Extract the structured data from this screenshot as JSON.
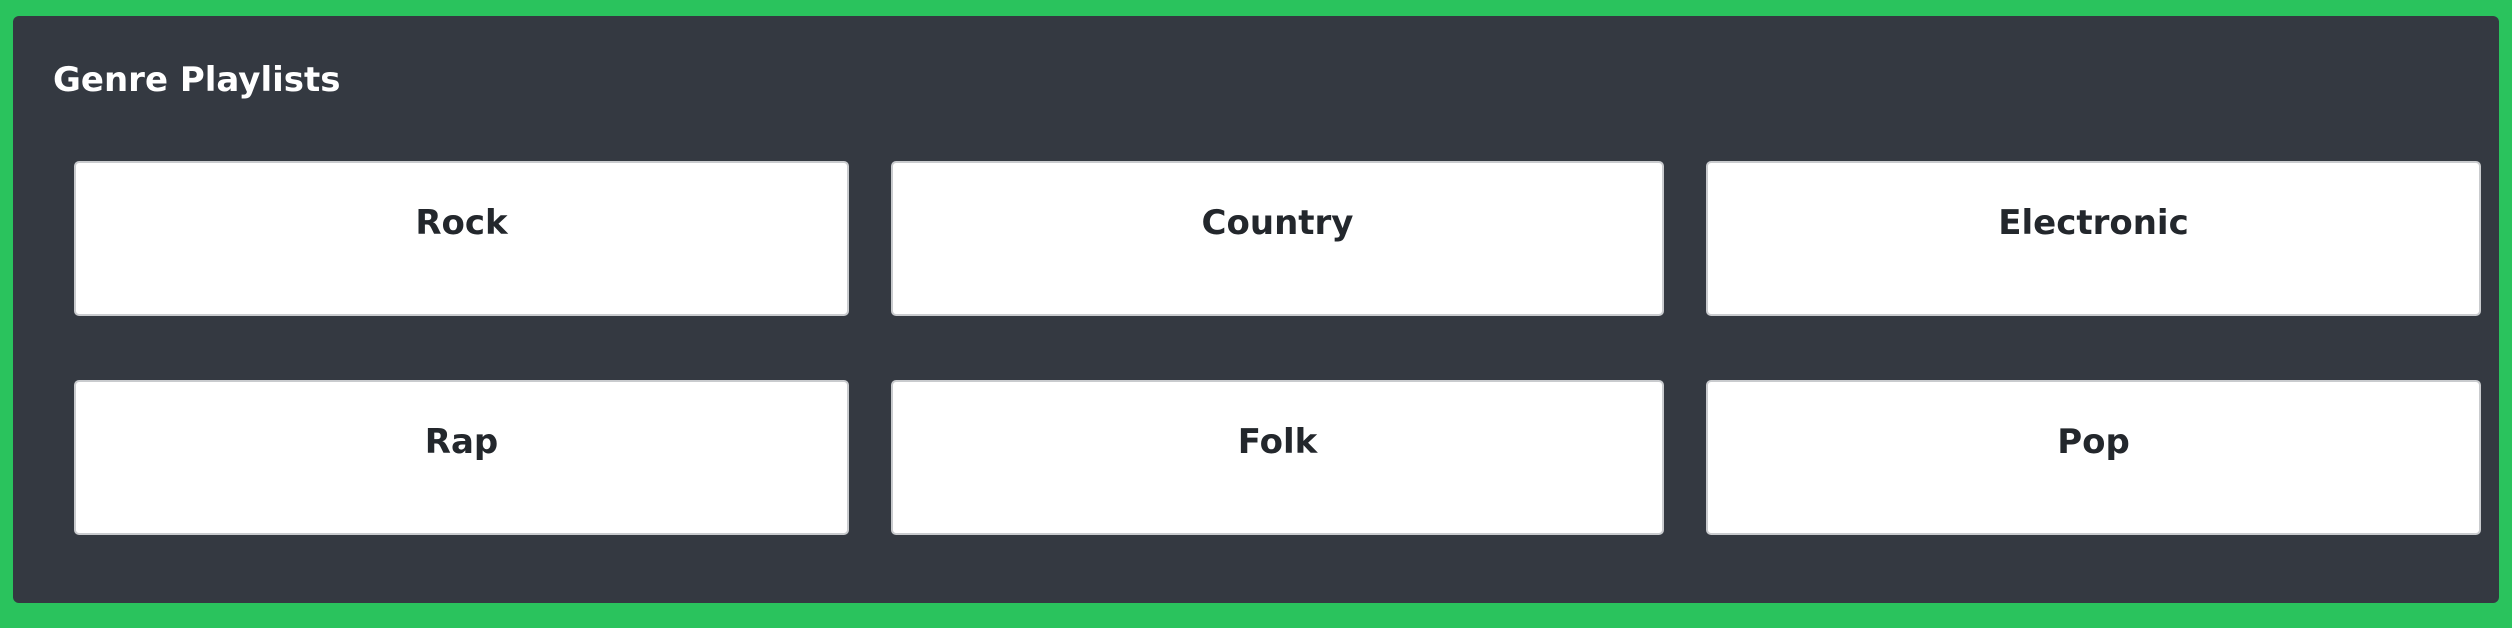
{
  "colors": {
    "page_background": "#2ac35d",
    "panel_background": "#343941",
    "card_background": "#ffffff",
    "card_border": "#c9cbce",
    "title_text": "#ffffff",
    "card_text": "#23272c"
  },
  "panel": {
    "title": "Genre Playlists"
  },
  "genres": [
    {
      "label": "Rock"
    },
    {
      "label": "Country"
    },
    {
      "label": "Electronic"
    },
    {
      "label": "Rap"
    },
    {
      "label": "Folk"
    },
    {
      "label": "Pop"
    }
  ]
}
